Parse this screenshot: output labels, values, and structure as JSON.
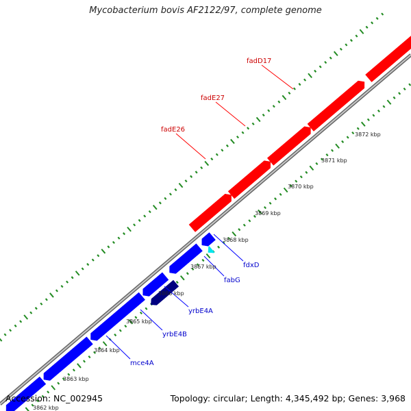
{
  "title": "Mycobacterium bovis AF2122/97, complete genome",
  "footer": {
    "accession": "Accession: NC_002945",
    "summary": "Topology: circular; Length: 4,345,492 bp; Genes: 3,968"
  },
  "colors": {
    "forward_gene": "#ff0000",
    "reverse_gene": "#0000ff",
    "highlight_gene": "#00e5ee",
    "selected_gene": "#000080",
    "backbone": "#8a8a8a",
    "tick": "#228b22",
    "label_forward": "#cc0000",
    "label_reverse": "#0000cc"
  },
  "kbp_ticks": [
    "3862 kbp",
    "3863 kbp",
    "3864 kbp",
    "3865 kbp",
    "3866 kbp",
    "3867 kbp",
    "3868 kbp",
    "3869 kbp",
    "3870 kbp",
    "3871 kbp",
    "3872 kbp"
  ],
  "gene_labels": {
    "forward": [
      "fadD17",
      "fadE27",
      "fadE26"
    ],
    "reverse": [
      "fdxD",
      "fabG",
      "yrbE4A",
      "yrbE4B",
      "mce4A"
    ]
  }
}
